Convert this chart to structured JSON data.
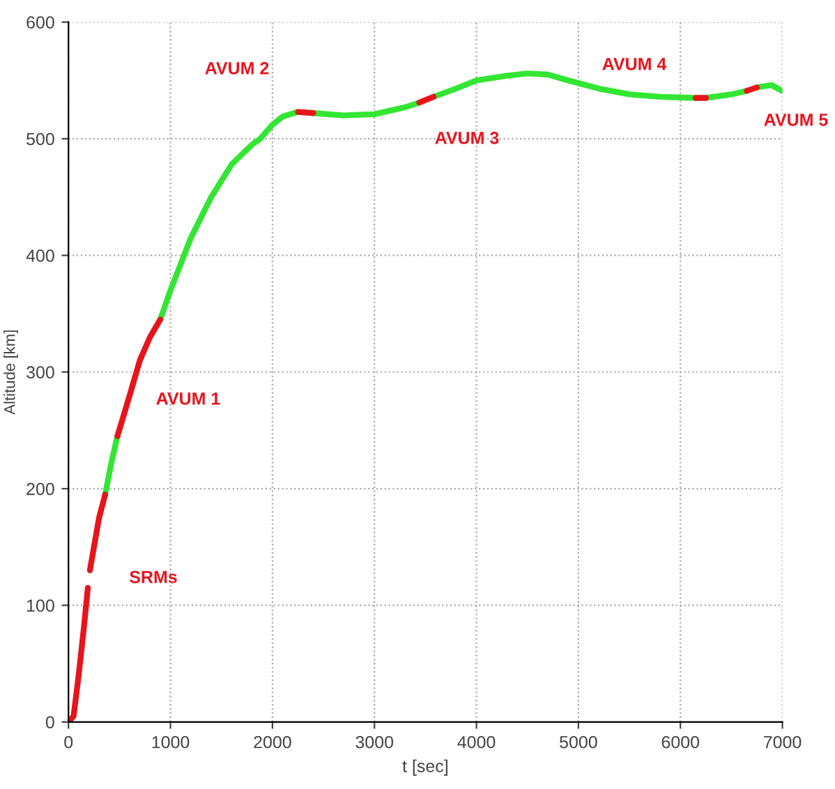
{
  "chart_data": {
    "type": "line",
    "xlabel": "t [sec]",
    "ylabel": "Altitude [km]",
    "xlim": [
      0,
      7000
    ],
    "ylim": [
      0,
      600
    ],
    "xticks": [
      0,
      1000,
      2000,
      3000,
      4000,
      5000,
      6000,
      7000
    ],
    "yticks": [
      0,
      100,
      200,
      300,
      400,
      500,
      600
    ],
    "grid": true,
    "line_style": "solid",
    "marker": "none",
    "series": [
      {
        "color": "#33e633",
        "x": [
          360,
          420,
          480,
          null,
          900,
          1000,
          1200,
          1400,
          1600,
          1800,
          1880,
          2000,
          2100,
          2250,
          null,
          2400,
          2700,
          3000,
          3300,
          3440,
          null,
          3580,
          3800,
          4000,
          4300,
          4500,
          4700,
          4900,
          5200,
          5500,
          5800,
          6150,
          null,
          6250,
          6500,
          6650,
          null,
          6750,
          6890,
          7000
        ],
        "values": [
          195,
          222,
          245,
          null,
          345,
          370,
          415,
          450,
          478,
          495,
          500,
          512,
          519,
          523,
          null,
          522,
          520,
          521,
          527,
          531,
          null,
          536,
          543,
          550,
          554,
          556,
          555,
          550,
          543,
          538,
          536,
          535,
          null,
          535,
          538,
          541,
          null,
          544,
          546,
          541
        ]
      },
      {
        "color": "#e8141c",
        "x": [
          0,
          50,
          100,
          150,
          190,
          null,
          210,
          300,
          360,
          null,
          480,
          600,
          700,
          800,
          900,
          null,
          2250,
          2400,
          null,
          3440,
          3580,
          null,
          6150,
          6250,
          null,
          6650,
          6750
        ],
        "values": [
          0,
          5,
          40,
          80,
          115,
          null,
          130,
          175,
          195,
          null,
          245,
          280,
          310,
          330,
          345,
          null,
          523,
          522,
          null,
          531,
          536,
          null,
          535,
          535,
          null,
          541,
          544
        ]
      }
    ],
    "annotations": [
      "SRMs",
      "AVUM 1",
      "AVUM 2",
      "AVUM 3",
      "AVUM 4",
      "AVUM 5"
    ]
  }
}
